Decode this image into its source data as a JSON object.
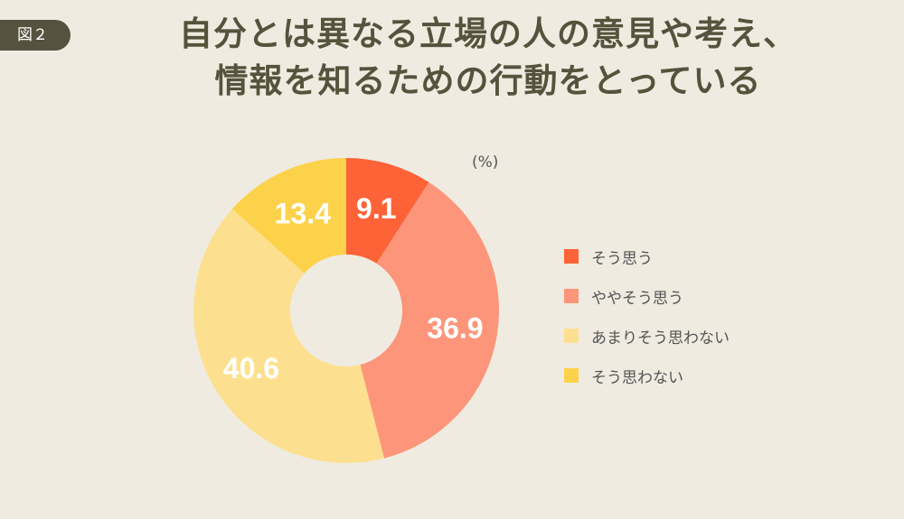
{
  "figure_label": "図２",
  "title_lines": [
    "自分とは異なる立場の人の意見や考え、",
    "情報を知るための行動をとっている"
  ],
  "colors": {
    "background": "#efebe1",
    "badge": "#56523f",
    "title": "#57523c"
  },
  "chart_data": {
    "type": "pie",
    "style": "donut",
    "unit": "(%)",
    "start_angle": "12 o'clock",
    "direction": "clockwise",
    "legend_position": "right",
    "categories": [
      "そう思う",
      "ややそう思う",
      "あまりそう思わない",
      "そう思わない"
    ],
    "values": [
      9.1,
      36.9,
      40.6,
      13.4
    ],
    "colors": [
      "#fe6237",
      "#fd957a",
      "#fde08f",
      "#fdd24b"
    ],
    "labels": [
      "9.1",
      "36.9",
      "40.6",
      "13.4"
    ]
  }
}
